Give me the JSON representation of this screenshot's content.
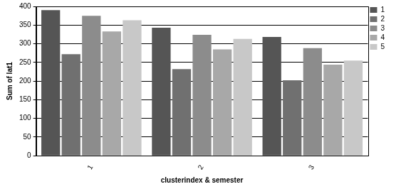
{
  "chart_data": {
    "type": "bar",
    "x_label": "clusterindex & semester",
    "y_label": "Sum of lat1",
    "categories": [
      "1",
      "2",
      "3"
    ],
    "series": [
      {
        "name": "1",
        "color": "#555555",
        "values": [
          390,
          343,
          318
        ]
      },
      {
        "name": "2",
        "color": "#707070",
        "values": [
          272,
          232,
          202
        ]
      },
      {
        "name": "3",
        "color": "#8c8c8c",
        "values": [
          375,
          324,
          288
        ]
      },
      {
        "name": "4",
        "color": "#a8a8a8",
        "values": [
          333,
          285,
          244
        ]
      },
      {
        "name": "5",
        "color": "#c8c8c8",
        "values": [
          363,
          313,
          255
        ]
      }
    ],
    "ylim": [
      0,
      400
    ],
    "yticks": [
      0,
      50,
      100,
      150,
      200,
      250,
      300,
      350,
      400
    ],
    "grid": true,
    "legend": "right"
  }
}
